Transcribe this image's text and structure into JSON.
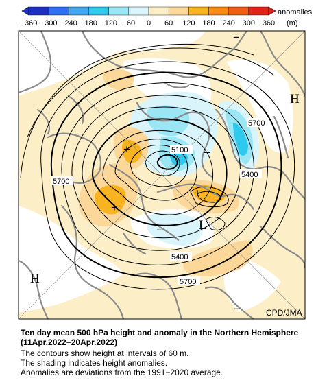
{
  "legend": {
    "title": "anomalies",
    "unit": "(m)",
    "ticks": [
      "−360",
      "−300",
      "−240",
      "−180",
      "−120",
      "−60",
      "0",
      "60",
      "120",
      "180",
      "240",
      "300",
      "360"
    ],
    "colors": [
      "#1d2fc2",
      "#2e6ef0",
      "#43a6f0",
      "#2fc9ee",
      "#9be6f5",
      "#d9f5fb",
      "#ffffff",
      "#fcefc7",
      "#fbd79a",
      "#f8b320",
      "#f78a14",
      "#f05e14",
      "#e2231a"
    ]
  },
  "map": {
    "source_label": "CPD/JMA",
    "contour_labels": [
      "5100",
      "5400",
      "5400",
      "5700",
      "5700",
      "5700"
    ],
    "markers": {
      "high": [
        "H",
        "H"
      ],
      "low": [
        "L"
      ],
      "plus": [
        "+",
        "+",
        "+"
      ],
      "minus": [
        "−",
        "−",
        "−",
        "−"
      ]
    }
  },
  "caption": {
    "title": "Ten day mean 500 hPa height and anomaly in the Northern Hemisphere (11Apr.2022−20Apr.2022)",
    "line1": "The contours show height at intervals of 60 m.",
    "line2": "The shading indicates height anomalies.",
    "line3": "Anomalies are deviations from the 1991−2020 average."
  }
}
